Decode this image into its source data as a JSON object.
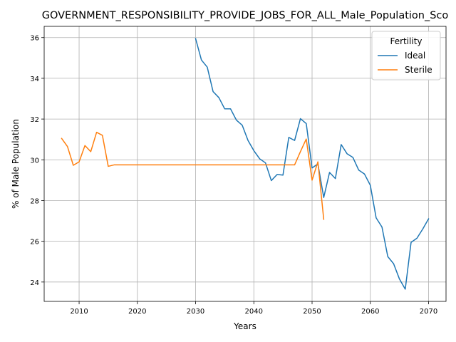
{
  "chart_data": {
    "type": "line",
    "title": "GOVERNMENT_RESPONSIBILITY_PROVIDE_JOBS_FOR_ALL_Male_Population_Sco",
    "xlabel": "Years",
    "ylabel": "% of Male Population",
    "xlim": [
      2004,
      2073
    ],
    "ylim": [
      23.05,
      36.55
    ],
    "xticks": [
      2010,
      2020,
      2030,
      2040,
      2050,
      2060,
      2070
    ],
    "yticks": [
      24,
      26,
      28,
      30,
      32,
      34,
      36
    ],
    "grid": true,
    "legend": {
      "title": "Fertility",
      "placement": "top-right"
    },
    "series": [
      {
        "name": "Ideal",
        "color": "#1f77b4",
        "x": [
          2030,
          2031,
          2032,
          2033,
          2034,
          2035,
          2036,
          2037,
          2038,
          2039,
          2040,
          2041,
          2042,
          2043,
          2044,
          2045,
          2046,
          2047,
          2048,
          2049,
          2050,
          2051,
          2052,
          2053,
          2054,
          2055,
          2056,
          2057,
          2058,
          2059,
          2060,
          2061,
          2062,
          2063,
          2064,
          2065,
          2066,
          2067,
          2068,
          2069,
          2070
        ],
        "y": [
          35.95,
          34.9,
          34.55,
          33.35,
          33.05,
          32.5,
          32.5,
          31.95,
          31.7,
          30.95,
          30.45,
          30.05,
          29.85,
          28.98,
          29.28,
          29.25,
          31.1,
          30.95,
          32.02,
          31.78,
          29.6,
          29.8,
          28.15,
          29.38,
          29.08,
          30.75,
          30.3,
          30.12,
          29.5,
          29.3,
          28.75,
          27.15,
          26.7,
          25.25,
          24.9,
          24.15,
          23.65,
          25.95,
          26.15,
          26.6,
          27.1
        ]
      },
      {
        "name": "Sterile",
        "color": "#ff7f0e",
        "x": [
          2007,
          2008,
          2009,
          2010,
          2011,
          2012,
          2013,
          2014,
          2015,
          2016,
          2017,
          2018,
          2019,
          2020,
          2021,
          2022,
          2023,
          2024,
          2025,
          2026,
          2027,
          2028,
          2029,
          2030,
          2031,
          2032,
          2033,
          2034,
          2035,
          2036,
          2037,
          2038,
          2039,
          2040,
          2041,
          2042,
          2043,
          2044,
          2045,
          2046,
          2047,
          2048,
          2049,
          2050,
          2051,
          2052
        ],
        "y": [
          31.05,
          30.65,
          29.73,
          29.9,
          30.7,
          30.4,
          31.35,
          31.2,
          29.68,
          29.75,
          29.75,
          29.75,
          29.75,
          29.75,
          29.75,
          29.75,
          29.75,
          29.75,
          29.75,
          29.75,
          29.75,
          29.75,
          29.75,
          29.75,
          29.75,
          29.75,
          29.75,
          29.75,
          29.75,
          29.75,
          29.75,
          29.75,
          29.75,
          29.75,
          29.75,
          29.75,
          29.75,
          29.75,
          29.75,
          29.75,
          29.75,
          30.4,
          31.02,
          29.0,
          29.9,
          27.08
        ]
      }
    ]
  }
}
